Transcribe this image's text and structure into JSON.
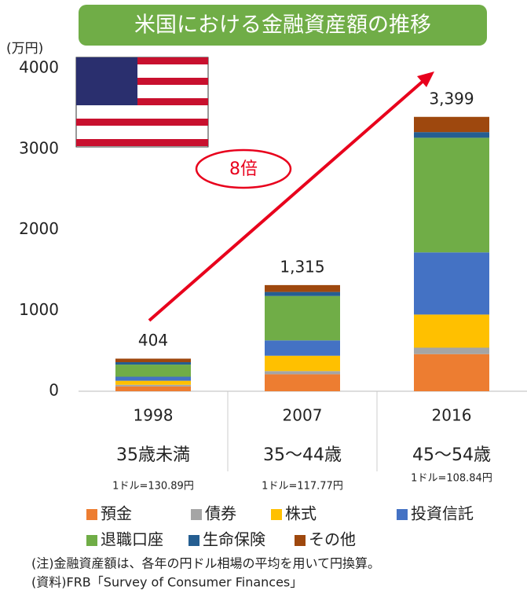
{
  "chart_data": {
    "type": "stacked_bar",
    "title": "米国における金融資産額の推移",
    "y_unit": "(万円)",
    "categories": [
      "1998",
      "2007",
      "2016"
    ],
    "age_groups": [
      "35歳未満",
      "35～44歳",
      "45～54歳"
    ],
    "exchange_rates": [
      "1ドル=130.89円",
      "1ドル=117.77円",
      "1ドル=108.84円"
    ],
    "series": [
      {
        "name": "預金",
        "color": "#ed7d31",
        "values": [
          60,
          210,
          460
        ]
      },
      {
        "name": "債券",
        "color": "#a5a5a5",
        "values": [
          20,
          40,
          80
        ]
      },
      {
        "name": "株式",
        "color": "#ffc000",
        "values": [
          50,
          190,
          410
        ]
      },
      {
        "name": "投資信託",
        "color": "#4472c4",
        "values": [
          50,
          190,
          770
        ]
      },
      {
        "name": "退職口座",
        "color": "#70ad47",
        "values": [
          150,
          550,
          1420
        ]
      },
      {
        "name": "生命保険",
        "color": "#255e91",
        "values": [
          30,
          50,
          70
        ]
      },
      {
        "name": "その他",
        "color": "#9e480e",
        "values": [
          44,
          85,
          189
        ]
      }
    ],
    "totals": [
      404,
      1315,
      3399
    ],
    "total_labels": [
      "404",
      "1,315",
      "3,399"
    ],
    "annotation": "8倍",
    "notes": [
      "(注)金融資産額は、各年の円ドル相場の平均を用いて円換算。",
      "(資料)FRB「Survey of Consumer Finances」"
    ],
    "ylim": [
      0,
      4000
    ],
    "yticks": [
      0,
      1000,
      2000,
      3000,
      4000
    ],
    "grid": false
  }
}
